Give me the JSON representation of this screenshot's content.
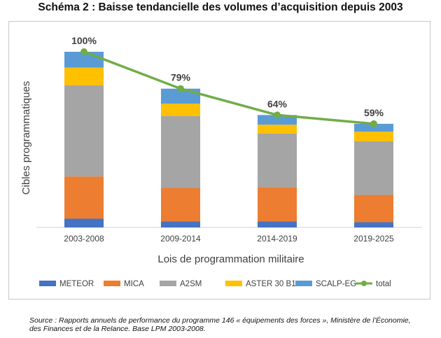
{
  "title": "Schéma 2 : Baisse tendancielle des volumes d’acquisition depuis 2003",
  "source": "Source : Rapports annuels de performance du programme 146 « équipements des forces », Ministère de l’Économie, des Finances et de la Relance. Base LPM 2003-2008.",
  "chart_data": {
    "type": "bar",
    "stacked": true,
    "title": "",
    "xlabel": "Lois de programmation militaire",
    "ylabel": "Cibles programmatiques",
    "categories": [
      "2003-2008",
      "2009-2014",
      "2014-2019",
      "2019-2025"
    ],
    "ylim": [
      0,
      100
    ],
    "grid": false,
    "legend_position": "bottom",
    "series": [
      {
        "name": "METEOR",
        "color": "#4472C4",
        "values": [
          5,
          3.5,
          3.5,
          3
        ]
      },
      {
        "name": "MICA",
        "color": "#ED7D31",
        "values": [
          24,
          19,
          19.5,
          15.5
        ]
      },
      {
        "name": "A2SM",
        "color": "#A5A5A5",
        "values": [
          52,
          41,
          30.5,
          30.5
        ]
      },
      {
        "name": "ASTER 30 B1",
        "color": "#FFC000",
        "values": [
          10,
          7,
          5,
          5.5
        ]
      },
      {
        "name": "SCALP-EG",
        "color": "#5B9BD5",
        "values": [
          9,
          8.5,
          5.5,
          4.5
        ]
      }
    ],
    "line": {
      "name": "total",
      "color": "#70AD47",
      "values": [
        100,
        79,
        64,
        59
      ],
      "labels": [
        "100%",
        "79%",
        "64%",
        "59%"
      ]
    }
  }
}
